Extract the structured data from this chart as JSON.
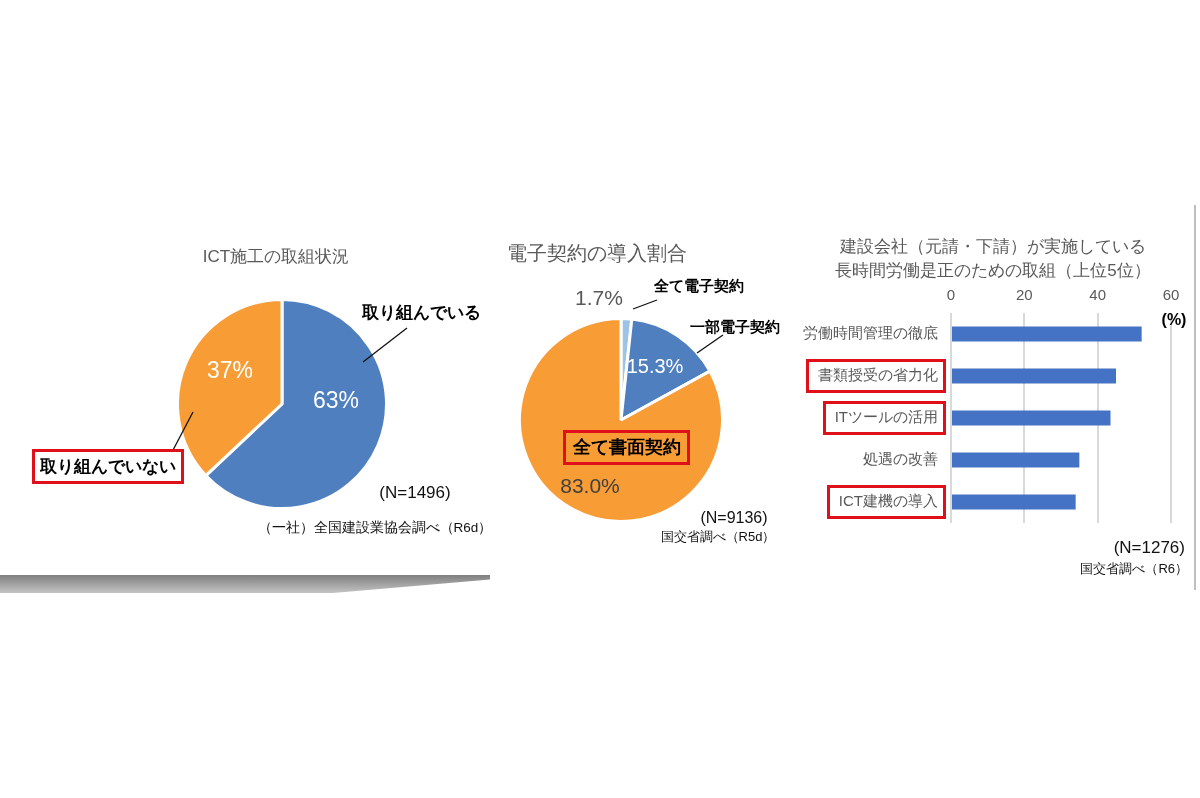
{
  "chart_data": [
    {
      "type": "pie",
      "title": "ICT施工の取組状況",
      "categories": [
        "取り組んでいる",
        "取り組んでいない"
      ],
      "values": [
        63,
        37
      ],
      "colors": [
        "#4f7fbf",
        "#f89c36"
      ],
      "value_labels": [
        "63%",
        "37%"
      ],
      "annotations": [
        "(N=1496)",
        "（一社）全国建設業協会調べ（R6d）"
      ]
    },
    {
      "type": "pie",
      "title": "電子契約の導入割合",
      "categories": [
        "全て電子契約",
        "一部電子契約",
        "全て書面契約"
      ],
      "values": [
        1.7,
        15.3,
        83.0
      ],
      "colors": [
        "#9dc3e6",
        "#4f7fbf",
        "#f89c36"
      ],
      "value_labels": [
        "1.7%",
        "15.3%",
        "83.0%"
      ],
      "annotations": [
        "(N=9136)",
        "国交省調べ（R5d）"
      ]
    },
    {
      "type": "bar",
      "orientation": "horizontal",
      "title": "建設会社（元請・下請）が実施している長時間労働是正のための取組（上位5位）",
      "xlabel": "(%)",
      "categories": [
        "労働時間管理の徹底",
        "書類授受の省力化",
        "ITツールの活用",
        "処遇の改善",
        "ICT建機の導入"
      ],
      "values": [
        52,
        45,
        43.5,
        35,
        34
      ],
      "color": "#4472c4",
      "xlim": [
        0,
        60
      ],
      "xticks": [
        0,
        20,
        40,
        60
      ],
      "grid": "x",
      "annotations": [
        "(N=1276)",
        "国交省調べ（R6）"
      ]
    }
  ]
}
